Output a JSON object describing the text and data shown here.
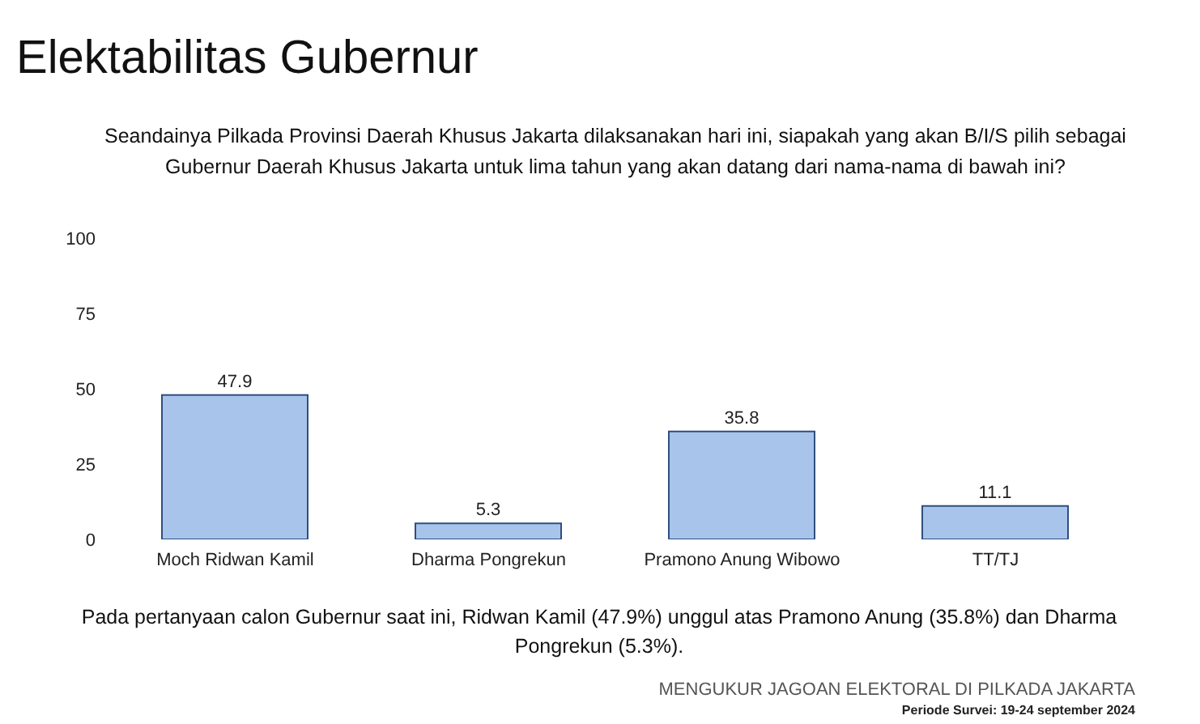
{
  "chart_data": {
    "type": "bar",
    "title": "Elektabilitas Gubernur",
    "subtitle": "Seandainya Pilkada Provinsi Daerah Khusus Jakarta dilaksanakan hari ini, siapakah yang akan B/I/S pilih sebagai Gubernur Daerah Khusus Jakarta untuk lima tahun yang akan datang dari nama-nama di bawah ini?",
    "categories": [
      "Moch Ridwan Kamil",
      "Dharma Pongrekun",
      "Pramono Anung Wibowo",
      "TT/TJ"
    ],
    "values": [
      47.9,
      5.3,
      35.8,
      11.1
    ],
    "color": "#a9c4eb",
    "ylim": [
      0,
      100
    ],
    "yticks": [
      0,
      25,
      50,
      75,
      100
    ],
    "data_labels": true,
    "annotations": [
      "Pada pertanyaan calon Gubernur saat ini, Ridwan Kamil (47.9%) unggul atas Pramono Anung (35.8%) dan Dharma Pongrekun (5.3%).",
      "MENGUKUR JAGOAN ELEKTORAL DI PILKADA JAKARTA",
      "Periode Survei: 19-24 september 2024"
    ]
  }
}
